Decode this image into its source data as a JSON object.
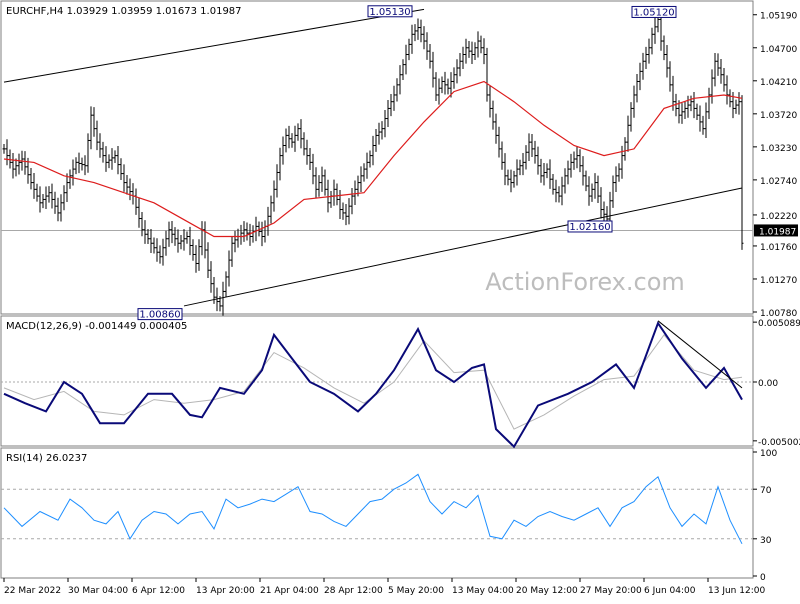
{
  "chart_data": {
    "type": "candlestick",
    "symbol_line": "EURCHF,H4  1.03929 1.03959 1.01673 1.01987",
    "watermark": "ActionForex.com",
    "colors": {
      "price": "#000000",
      "ma": "#dd1c1c",
      "channel": "#000000",
      "macd": "#0a0a78",
      "macd_signal": "#b6b6b6",
      "rsi": "#1e8fff",
      "grid": "#a8a8a8"
    },
    "price_axis": {
      "ylim": [
        1.0078,
        1.0529
      ],
      "ticks": [
        "1.05190",
        "1.04700",
        "1.04210",
        "1.03720",
        "1.03230",
        "1.02740",
        "1.02220",
        "1.01760",
        "1.01270",
        "1.00780"
      ],
      "current_label": "1.01987"
    },
    "x_tick_labels": [
      "22 Mar 2022",
      "30 Mar 04:00",
      "6 Apr 12:00",
      "13 Apr 20:00",
      "21 Apr 04:00",
      "28 Apr 12:00",
      "5 May 20:00",
      "13 May 04:00",
      "20 May 12:00",
      "27 May 20:00",
      "6 Jun 04:00",
      "13 Jun 12:00"
    ],
    "annotations": [
      {
        "label": "1.05130",
        "value": 1.0513
      },
      {
        "label": "1.05120",
        "value": 1.0512
      },
      {
        "label": "1.02160",
        "value": 1.0216
      },
      {
        "label": "1.00860",
        "value": 1.0086
      }
    ],
    "price_path": [
      [
        0,
        1.032
      ],
      [
        3,
        1.029
      ],
      [
        6,
        1.0305
      ],
      [
        9,
        1.027
      ],
      [
        12,
        1.024
      ],
      [
        15,
        1.0255
      ],
      [
        18,
        1.0225
      ],
      [
        21,
        1.027
      ],
      [
        24,
        1.03
      ],
      [
        27,
        1.0295
      ],
      [
        29,
        1.037
      ],
      [
        31,
        1.033
      ],
      [
        34,
        1.03
      ],
      [
        37,
        1.031
      ],
      [
        40,
        1.027
      ],
      [
        43,
        1.025
      ],
      [
        46,
        1.02
      ],
      [
        49,
        1.018
      ],
      [
        52,
        1.016
      ],
      [
        55,
        1.02
      ],
      [
        58,
        1.018
      ],
      [
        61,
        1.019
      ],
      [
        64,
        1.015
      ],
      [
        66,
        1.02
      ],
      [
        68,
        1.014
      ],
      [
        70,
        1.01
      ],
      [
        72,
        1.0087
      ],
      [
        74,
        1.013
      ],
      [
        76,
        1.018
      ],
      [
        78,
        1.019
      ],
      [
        80,
        1.02
      ],
      [
        82,
        1.019
      ],
      [
        84,
        1.0205
      ],
      [
        86,
        1.019
      ],
      [
        88,
        1.022
      ],
      [
        90,
        1.026
      ],
      [
        92,
        1.031
      ],
      [
        94,
        1.034
      ],
      [
        96,
        1.033
      ],
      [
        98,
        1.035
      ],
      [
        100,
        1.032
      ],
      [
        102,
        1.03
      ],
      [
        104,
        1.026
      ],
      [
        106,
        1.028
      ],
      [
        108,
        1.024
      ],
      [
        110,
        1.026
      ],
      [
        112,
        1.023
      ],
      [
        114,
        1.022
      ],
      [
        116,
        1.025
      ],
      [
        118,
        1.027
      ],
      [
        120,
        1.029
      ],
      [
        122,
        1.031
      ],
      [
        124,
        1.034
      ],
      [
        126,
        1.035
      ],
      [
        128,
        1.038
      ],
      [
        130,
        1.04
      ],
      [
        132,
        1.043
      ],
      [
        134,
        1.046
      ],
      [
        136,
        1.049
      ],
      [
        138,
        1.05
      ],
      [
        140,
        1.048
      ],
      [
        142,
        1.045
      ],
      [
        144,
        1.04
      ],
      [
        146,
        1.042
      ],
      [
        148,
        1.041
      ],
      [
        150,
        1.043
      ],
      [
        152,
        1.045
      ],
      [
        154,
        1.047
      ],
      [
        156,
        1.046
      ],
      [
        158,
        1.048
      ],
      [
        160,
        1.046
      ],
      [
        161,
        1.04
      ],
      [
        163,
        1.036
      ],
      [
        165,
        1.032
      ],
      [
        167,
        1.028
      ],
      [
        169,
        1.027
      ],
      [
        171,
        1.029
      ],
      [
        173,
        1.03
      ],
      [
        175,
        1.033
      ],
      [
        177,
        1.031
      ],
      [
        179,
        1.028
      ],
      [
        181,
        1.029
      ],
      [
        183,
        1.026
      ],
      [
        185,
        1.025
      ],
      [
        187,
        1.028
      ],
      [
        189,
        1.03
      ],
      [
        191,
        1.031
      ],
      [
        193,
        1.028
      ],
      [
        195,
        1.025
      ],
      [
        197,
        1.027
      ],
      [
        199,
        1.023
      ],
      [
        201,
        1.0216
      ],
      [
        203,
        1.027
      ],
      [
        205,
        1.029
      ],
      [
        207,
        1.033
      ],
      [
        209,
        1.038
      ],
      [
        211,
        1.042
      ],
      [
        213,
        1.045
      ],
      [
        215,
        1.047
      ],
      [
        216,
        1.049
      ],
      [
        218,
        1.0512
      ],
      [
        219,
        1.048
      ],
      [
        221,
        1.044
      ],
      [
        223,
        1.039
      ],
      [
        225,
        1.037
      ],
      [
        227,
        1.038
      ],
      [
        229,
        1.039
      ],
      [
        231,
        1.037
      ],
      [
        233,
        1.035
      ],
      [
        235,
        1.04
      ],
      [
        237,
        1.045
      ],
      [
        239,
        1.043
      ],
      [
        241,
        1.04
      ],
      [
        243,
        1.038
      ],
      [
        245,
        1.039
      ],
      [
        246,
        1.018
      ]
    ],
    "ma_path": [
      [
        0,
        1.0305
      ],
      [
        10,
        1.03
      ],
      [
        20,
        1.028
      ],
      [
        30,
        1.027
      ],
      [
        40,
        1.0255
      ],
      [
        50,
        1.024
      ],
      [
        60,
        1.0215
      ],
      [
        70,
        1.019
      ],
      [
        80,
        1.019
      ],
      [
        90,
        1.021
      ],
      [
        100,
        1.0245
      ],
      [
        110,
        1.025
      ],
      [
        120,
        1.0255
      ],
      [
        130,
        1.031
      ],
      [
        140,
        1.036
      ],
      [
        150,
        1.0405
      ],
      [
        160,
        1.042
      ],
      [
        170,
        1.039
      ],
      [
        180,
        1.0355
      ],
      [
        190,
        1.0325
      ],
      [
        200,
        1.031
      ],
      [
        210,
        1.032
      ],
      [
        220,
        1.038
      ],
      [
        230,
        1.0395
      ],
      [
        240,
        1.04
      ],
      [
        246,
        1.0395
      ]
    ],
    "channel_lines": [
      {
        "from": [
          0,
          1.0419
        ],
        "to": [
          140,
          1.0527
        ]
      },
      {
        "from": [
          60,
          1.0087
        ],
        "to": [
          246,
          1.0262
        ]
      }
    ],
    "price_grid_value": 1.0199,
    "macd": {
      "label": "MACD(12,26,9) -0.001449 0.000405",
      "ylim": [
        -0.0051,
        0.0051
      ],
      "ticks": [
        "0.005089",
        "0.00",
        "-0.005002"
      ],
      "main": [
        [
          0,
          -0.001
        ],
        [
          7,
          -0.0018
        ],
        [
          14,
          -0.0025
        ],
        [
          20,
          0.0
        ],
        [
          26,
          -0.001
        ],
        [
          32,
          -0.0035
        ],
        [
          40,
          -0.0035
        ],
        [
          48,
          -0.001
        ],
        [
          56,
          -0.001
        ],
        [
          62,
          -0.0028
        ],
        [
          66,
          -0.003
        ],
        [
          72,
          -0.0005
        ],
        [
          80,
          -0.001
        ],
        [
          86,
          0.001
        ],
        [
          90,
          0.004
        ],
        [
          96,
          0.002
        ],
        [
          102,
          0.0
        ],
        [
          110,
          -0.001
        ],
        [
          118,
          -0.0025
        ],
        [
          124,
          -0.001
        ],
        [
          130,
          0.001
        ],
        [
          138,
          0.0045
        ],
        [
          144,
          0.001
        ],
        [
          150,
          0.0
        ],
        [
          156,
          0.0012
        ],
        [
          160,
          0.0015
        ],
        [
          164,
          -0.004
        ],
        [
          170,
          -0.0055
        ],
        [
          178,
          -0.002
        ],
        [
          188,
          -0.001
        ],
        [
          196,
          0.0
        ],
        [
          204,
          0.0015
        ],
        [
          210,
          -0.0005
        ],
        [
          218,
          0.005
        ],
        [
          226,
          0.002
        ],
        [
          234,
          -0.0005
        ],
        [
          240,
          0.0012
        ],
        [
          246,
          -0.0015
        ]
      ],
      "signal": [
        [
          0,
          -0.0005
        ],
        [
          10,
          -0.0015
        ],
        [
          20,
          -0.0008
        ],
        [
          30,
          -0.0025
        ],
        [
          40,
          -0.0028
        ],
        [
          50,
          -0.0015
        ],
        [
          60,
          -0.0018
        ],
        [
          70,
          -0.0015
        ],
        [
          80,
          -0.0008
        ],
        [
          90,
          0.0025
        ],
        [
          100,
          0.0012
        ],
        [
          110,
          -0.0005
        ],
        [
          120,
          -0.0018
        ],
        [
          130,
          0.0
        ],
        [
          140,
          0.0035
        ],
        [
          150,
          0.0008
        ],
        [
          160,
          0.001
        ],
        [
          170,
          -0.004
        ],
        [
          180,
          -0.0028
        ],
        [
          190,
          -0.0012
        ],
        [
          200,
          0.0002
        ],
        [
          210,
          0.0005
        ],
        [
          220,
          0.004
        ],
        [
          230,
          0.001
        ],
        [
          240,
          0.0002
        ],
        [
          246,
          0.0004
        ]
      ],
      "trendline": {
        "from": [
          218,
          0.0052
        ],
        "to": [
          246,
          -0.0005
        ]
      }
    },
    "rsi": {
      "label": "RSI(14) 26.0237",
      "ylim": [
        0,
        100
      ],
      "ticks": [
        "100",
        "70",
        "30",
        "0"
      ],
      "levels": [
        70,
        30
      ],
      "values": [
        [
          0,
          55
        ],
        [
          6,
          40
        ],
        [
          12,
          52
        ],
        [
          18,
          45
        ],
        [
          22,
          62
        ],
        [
          26,
          55
        ],
        [
          30,
          45
        ],
        [
          34,
          42
        ],
        [
          38,
          52
        ],
        [
          42,
          30
        ],
        [
          46,
          45
        ],
        [
          50,
          52
        ],
        [
          54,
          50
        ],
        [
          58,
          42
        ],
        [
          62,
          50
        ],
        [
          66,
          52
        ],
        [
          70,
          38
        ],
        [
          74,
          62
        ],
        [
          78,
          55
        ],
        [
          82,
          58
        ],
        [
          86,
          62
        ],
        [
          90,
          60
        ],
        [
          94,
          66
        ],
        [
          98,
          72
        ],
        [
          102,
          52
        ],
        [
          106,
          50
        ],
        [
          110,
          44
        ],
        [
          114,
          40
        ],
        [
          118,
          50
        ],
        [
          122,
          60
        ],
        [
          126,
          62
        ],
        [
          130,
          70
        ],
        [
          134,
          75
        ],
        [
          138,
          82
        ],
        [
          142,
          60
        ],
        [
          146,
          50
        ],
        [
          150,
          60
        ],
        [
          154,
          55
        ],
        [
          158,
          65
        ],
        [
          162,
          32
        ],
        [
          166,
          30
        ],
        [
          170,
          45
        ],
        [
          174,
          40
        ],
        [
          178,
          48
        ],
        [
          182,
          52
        ],
        [
          186,
          48
        ],
        [
          190,
          45
        ],
        [
          194,
          50
        ],
        [
          198,
          55
        ],
        [
          202,
          40
        ],
        [
          206,
          55
        ],
        [
          210,
          60
        ],
        [
          214,
          72
        ],
        [
          218,
          80
        ],
        [
          222,
          55
        ],
        [
          226,
          40
        ],
        [
          230,
          50
        ],
        [
          234,
          42
        ],
        [
          238,
          72
        ],
        [
          242,
          45
        ],
        [
          246,
          26
        ]
      ]
    }
  }
}
